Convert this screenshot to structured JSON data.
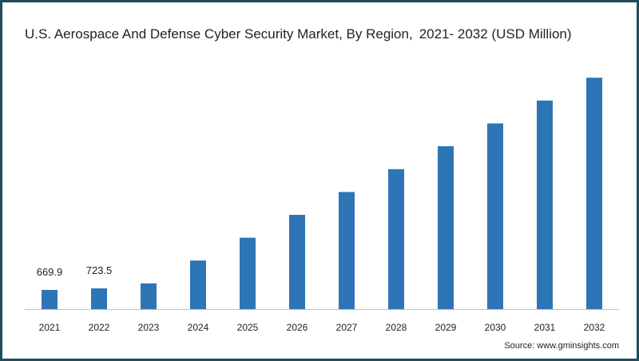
{
  "title": {
    "main": "U.S. Aerospace And Defense Cyber Security Market, By Region,",
    "sub": "2021- 2032 (USD Million)"
  },
  "source": "Source: www.gminsights.com",
  "colors": {
    "bar": "#2e75b6",
    "axis": "#bfbfbf",
    "frame": "#1f4e5f"
  },
  "chart_data": {
    "type": "bar",
    "title": "U.S. Aerospace And Defense Cyber Security Market, By Region, 2021- 2032 (USD Million)",
    "categories": [
      "2021",
      "2022",
      "2023",
      "2024",
      "2025",
      "2026",
      "2027",
      "2028",
      "2029",
      "2030",
      "2031",
      "2032"
    ],
    "values": [
      669.9,
      723.5,
      900,
      1700,
      2500,
      3300,
      4100,
      4900,
      5700,
      6500,
      7300,
      8100
    ],
    "data_labels": [
      "669.9",
      "723.5",
      null,
      null,
      null,
      null,
      null,
      null,
      null,
      null,
      null,
      null
    ],
    "ylim": [
      0,
      8500
    ],
    "xlabel": "",
    "ylabel": "",
    "grid": false,
    "legend": "none"
  }
}
